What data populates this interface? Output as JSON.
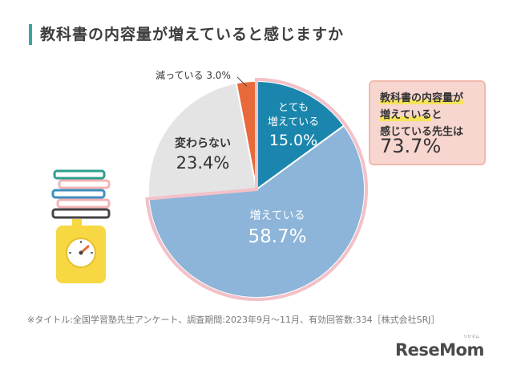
{
  "header": {
    "title": "教科書の内容量が増えていると感じますか"
  },
  "chart_data": {
    "type": "pie",
    "title": "教科書の内容量が増えていると感じますか",
    "start": "12 o'clock, clockwise",
    "slices": [
      {
        "label": "とても\n増えている",
        "value": 15.0,
        "value_text": "15.0%",
        "color": "#1b86ad",
        "text_color": "#ffffff"
      },
      {
        "label": "増えている",
        "value": 58.7,
        "value_text": "58.7%",
        "color": "#8db4d9",
        "text_color": "#ffffff"
      },
      {
        "label": "変わらない",
        "value": 23.4,
        "value_text": "23.4%",
        "color": "#e4e4e4",
        "text_color": "#333333"
      },
      {
        "label": "減っている",
        "value": 3.0,
        "value_text": "3.0%",
        "color": "#e8693a",
        "text_color": "#333333"
      }
    ],
    "highlight_outline_color": "#f3c1c8"
  },
  "callout": {
    "line1": "教科書の内容量が",
    "line2a": "増えている",
    "line2b": "と",
    "line3": "感じている先生は",
    "value": "73.7%"
  },
  "footnote": "※タイトル:全国学習塾先生アンケート、調査期間:2023年9月～11月、有効回答数:334［株式会社SRJ］",
  "logo": {
    "text": "ReseMom",
    "ruby": "リセマム"
  },
  "illustration": {
    "icon": "book-stack-on-scale-icon",
    "colors": {
      "scale": "#f7d742",
      "book_teal": "#2e9e8c",
      "book_pink": "#f3b3b6",
      "book_blue": "#3f8fbf"
    }
  }
}
